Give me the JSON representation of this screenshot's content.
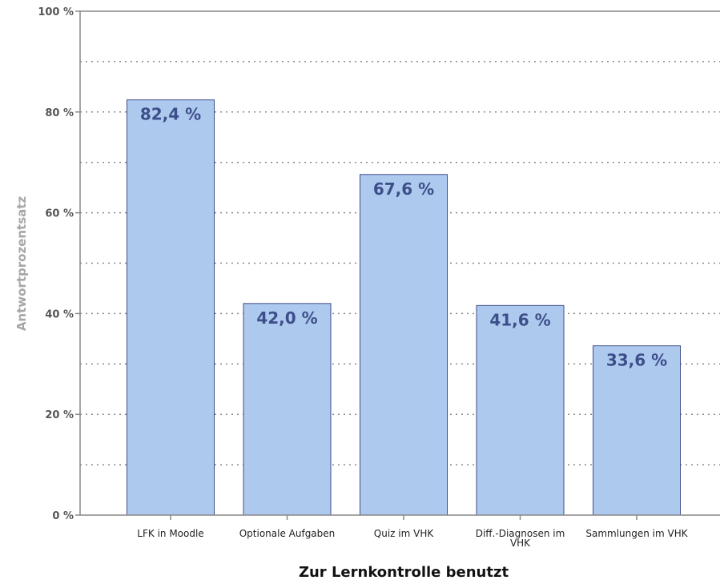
{
  "chart_data": {
    "type": "bar",
    "xlabel": "Zur Lernkontrolle benutzt",
    "ylabel": "Antwortprozentsatz",
    "ylim": [
      0,
      100
    ],
    "yticks": [
      {
        "value": 0,
        "label": "0 %"
      },
      {
        "value": 20,
        "label": "20 %"
      },
      {
        "value": 40,
        "label": "40 %"
      },
      {
        "value": 60,
        "label": "60 %"
      },
      {
        "value": 80,
        "label": "80 %"
      },
      {
        "value": 100,
        "label": "100 %"
      }
    ],
    "minor_gridlines": [
      10,
      30,
      50,
      70,
      90
    ],
    "grid": "dotted horizontal",
    "categories": [
      [
        "LFK in Moodle"
      ],
      [
        "Optionale Aufgaben"
      ],
      [
        "Quiz im VHK"
      ],
      [
        "Diff.-Diagnosen im",
        "VHK"
      ],
      [
        "Sammlungen im VHK"
      ]
    ],
    "values": [
      82.4,
      42.0,
      67.6,
      41.6,
      33.6
    ],
    "value_labels": [
      "82,4 %",
      "42,0 %",
      "67,6 %",
      "41,6 %",
      "33,6 %"
    ],
    "colors": {
      "bar_fill": "#aec9ee",
      "bar_stroke": "#3d4f8a",
      "value_text": "#3d4f8a",
      "axis": "#888888",
      "grid": "#888888"
    }
  }
}
